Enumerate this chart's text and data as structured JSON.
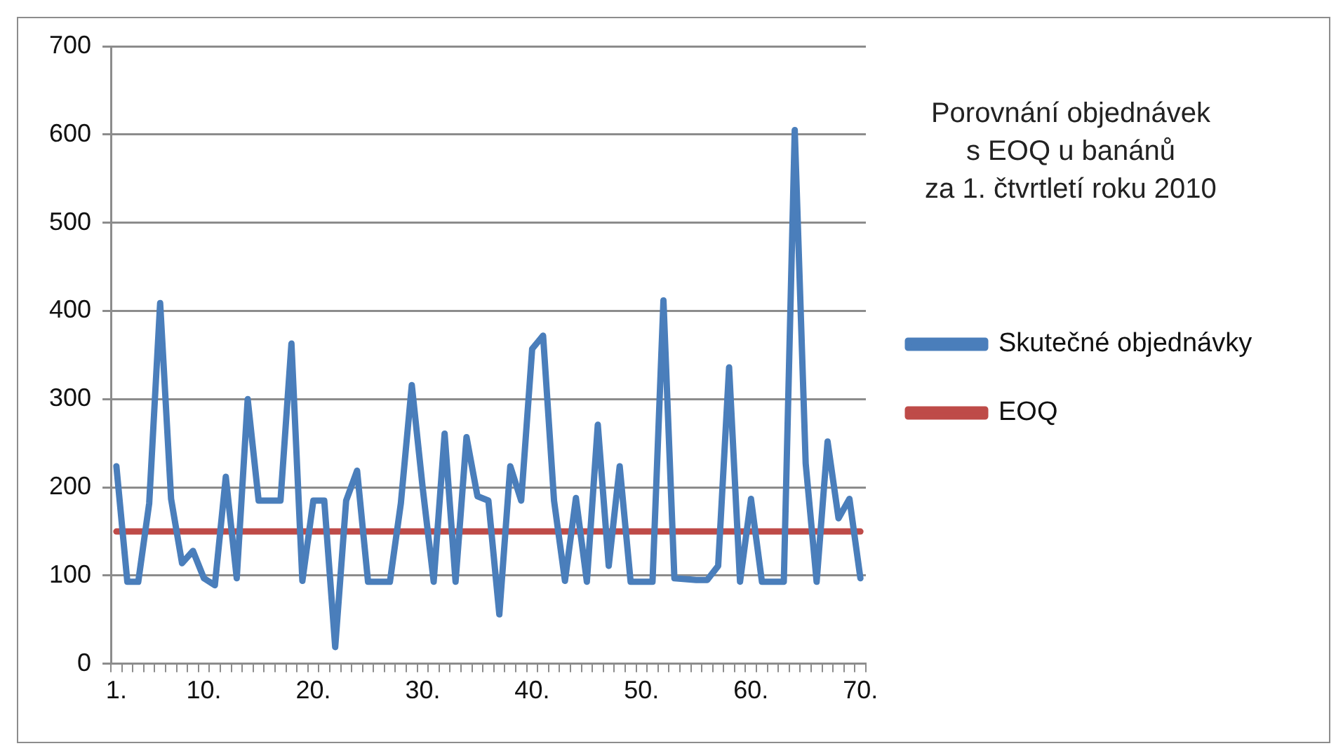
{
  "chart_data": {
    "type": "line",
    "title": "Porovnání objednávek\ns EOQ u banánů\nza 1. čtvrtletí roku 2010",
    "categories": [
      "1.",
      null,
      null,
      null,
      null,
      null,
      null,
      null,
      "10.",
      null,
      null,
      null,
      null,
      null,
      null,
      null,
      null,
      null,
      "20.",
      null,
      null,
      null,
      null,
      null,
      null,
      null,
      null,
      null,
      "30.",
      null,
      null,
      null,
      null,
      null,
      null,
      null,
      null,
      null,
      "40.",
      null,
      null,
      null,
      null,
      null,
      null,
      null,
      null,
      null,
      "50.",
      null,
      null,
      null,
      null,
      null,
      null,
      null,
      null,
      null,
      "60.",
      null,
      null,
      null,
      null,
      null,
      null,
      null,
      null,
      null,
      "70."
    ],
    "series": [
      {
        "name": "Skutečné objednávky",
        "color": "#4a7ebb",
        "values": [
          224,
          93,
          93,
          182,
          409,
          187,
          114,
          128,
          97,
          89,
          212,
          97,
          300,
          185,
          185,
          185,
          363,
          94,
          185,
          185,
          19,
          185,
          219,
          93,
          93,
          93,
          182,
          316,
          199,
          93,
          261,
          93,
          257,
          190,
          185,
          56,
          224,
          185,
          357,
          372,
          185,
          94,
          188,
          93,
          271,
          111,
          224,
          93,
          93,
          93,
          412,
          97,
          96,
          95,
          95,
          111,
          336,
          93,
          187,
          93,
          93,
          93,
          605,
          227,
          93,
          252,
          165,
          187,
          97
        ]
      },
      {
        "name": "EOQ",
        "color": "#be4b48",
        "values": [
          150,
          150,
          150,
          150,
          150,
          150,
          150,
          150,
          150,
          150,
          150,
          150,
          150,
          150,
          150,
          150,
          150,
          150,
          150,
          150,
          150,
          150,
          150,
          150,
          150,
          150,
          150,
          150,
          150,
          150,
          150,
          150,
          150,
          150,
          150,
          150,
          150,
          150,
          150,
          150,
          150,
          150,
          150,
          150,
          150,
          150,
          150,
          150,
          150,
          150,
          150,
          150,
          150,
          150,
          150,
          150,
          150,
          150,
          150,
          150,
          150,
          150,
          150,
          150,
          150,
          150,
          150,
          150,
          150
        ]
      }
    ],
    "ylim": [
      0,
      700
    ],
    "yticks": [
      0,
      100,
      200,
      300,
      400,
      500,
      600,
      700
    ],
    "grid": "y",
    "legend": "right",
    "marker": "none",
    "line_style": "solid"
  }
}
